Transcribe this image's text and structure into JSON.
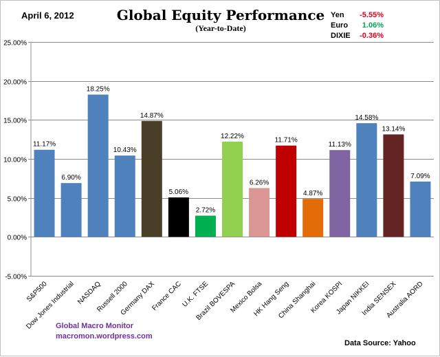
{
  "header": {
    "date": "April 6, 2012",
    "title": "Global Equity Performance",
    "subtitle": "(Year-to-Date)"
  },
  "currencies": [
    {
      "name": "Yen",
      "value": "-5.55%",
      "color": "#e0001b"
    },
    {
      "name": "Euro",
      "value": "1.06%",
      "color": "#00a651"
    },
    {
      "name": "DIXIE",
      "value": "-0.36%",
      "color": "#e0001b"
    }
  ],
  "footer": {
    "brand_line1": "Global Macro Monitor",
    "brand_line2": "macromon.wordpress.com",
    "brand_color": "#7030a0",
    "source": "Data Source:  Yahoo"
  },
  "chart_data": {
    "type": "bar",
    "title": "Global Equity Performance",
    "subtitle": "(Year-to-Date)",
    "xlabel": "",
    "ylabel": "",
    "ylim": [
      -5,
      25
    ],
    "yticks": [
      -5,
      0,
      5,
      10,
      15,
      20,
      25
    ],
    "ytick_labels": [
      "-5.00%",
      "0.00%",
      "5.00%",
      "10.00%",
      "15.00%",
      "20.00%",
      "25.00%"
    ],
    "grid": true,
    "categories": [
      "S&P500",
      "Dow Jones Industrial",
      "NASDAQ",
      "Russell 2000",
      "Germany DAX",
      "France CAC",
      "U.K. FTSE",
      "Brazil BOVESPA",
      "Mexico Bolsa",
      "HK Hang Seng",
      "China Shanghai",
      "Korea KOSPI",
      "Japan NIKKEI",
      "India SENSEX",
      "Australia AORD"
    ],
    "values": [
      11.17,
      6.9,
      18.25,
      10.43,
      14.87,
      5.06,
      2.72,
      12.22,
      6.26,
      11.71,
      4.87,
      11.13,
      14.58,
      13.14,
      7.09
    ],
    "data_labels": [
      "11.17%",
      "6.90%",
      "18.25%",
      "10.43%",
      "14.87%",
      "5.06%",
      "2.72%",
      "12.22%",
      "6.26%",
      "11.71%",
      "4.87%",
      "11.13%",
      "14.58%",
      "13.14%",
      "7.09%"
    ],
    "colors": [
      "#4f81bd",
      "#4f81bd",
      "#4f81bd",
      "#4f81bd",
      "#4a3f26",
      "#000000",
      "#00b050",
      "#92d050",
      "#da9694",
      "#c00000",
      "#e36c09",
      "#8064a2",
      "#4f81bd",
      "#632423",
      "#4f81bd"
    ]
  }
}
